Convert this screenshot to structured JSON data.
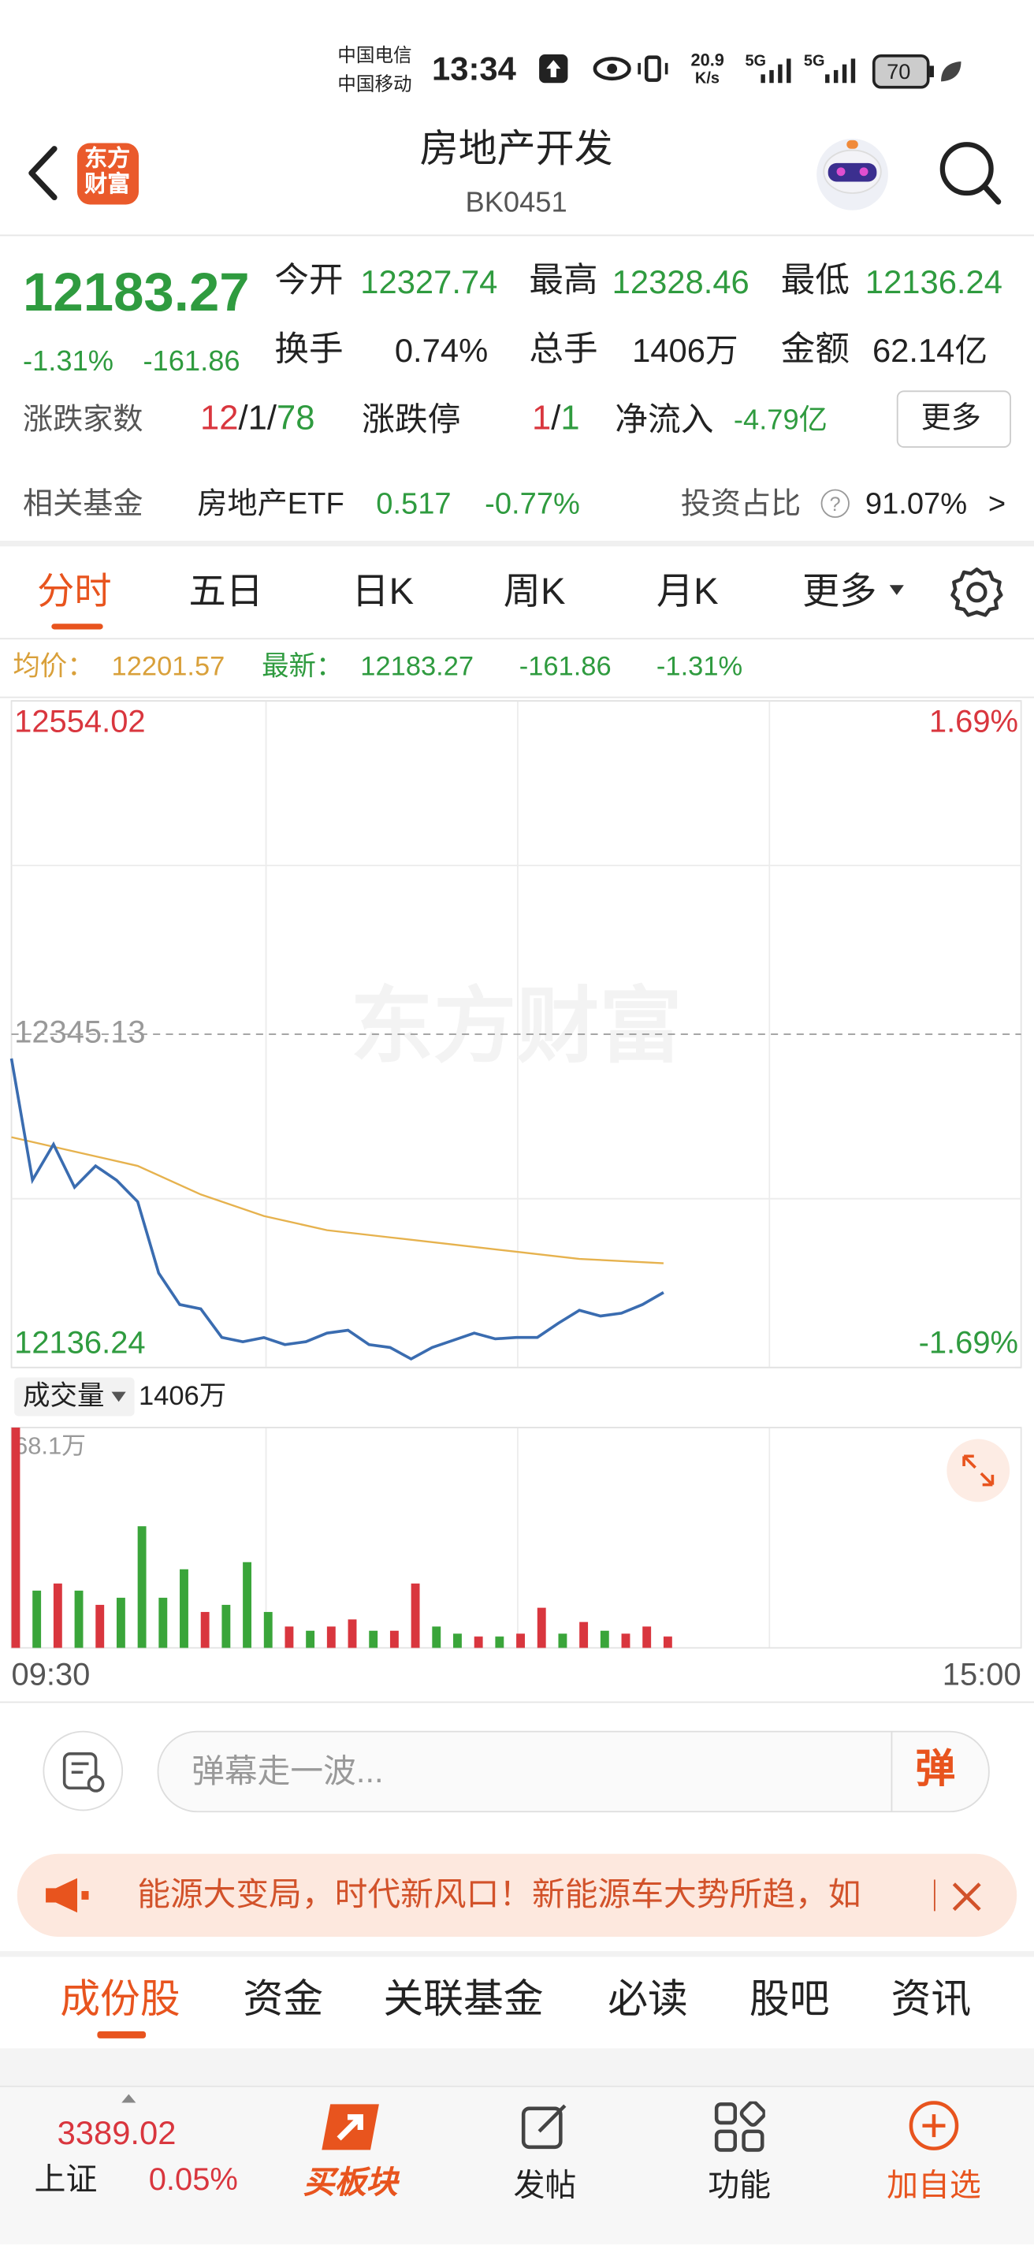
{
  "status_bar": {
    "carrier1": "中国电信",
    "carrier2": "中国移动",
    "time": "13:34",
    "speed": "20.9",
    "speed_unit": "K/s",
    "net1": "5G",
    "net2": "5G",
    "battery": "70"
  },
  "header": {
    "logo_line1": "东方",
    "logo_line2": "财富",
    "title": "房地产开发",
    "code": "BK0451"
  },
  "quote": {
    "price": "12183.27",
    "change_pct": "-1.31%",
    "change": "-161.86",
    "stats": [
      {
        "label": "今开",
        "value": "12327.74"
      },
      {
        "label": "最高",
        "value": "12328.46"
      },
      {
        "label": "最低",
        "value": "12136.24"
      },
      {
        "label": "换手",
        "value": "0.74%"
      },
      {
        "label": "总手",
        "value": "1406万"
      },
      {
        "label": "金额",
        "value": "62.14亿"
      }
    ],
    "breadth_label": "涨跌家数",
    "breadth_up": "12",
    "breadth_flat": "1",
    "breadth_down": "78",
    "separator": "/",
    "limit_label": "涨跌停",
    "limit_up": "1",
    "limit_down": "1",
    "inflow_label": "净流入",
    "inflow": "-4.79亿",
    "more": "更多"
  },
  "fund": {
    "label": "相关基金",
    "name": "房地产ETF",
    "price": "0.517",
    "change": "-0.77%",
    "ratio_label": "投资占比",
    "help": "?",
    "ratio": "91.07%",
    "arrow": ">"
  },
  "chart_tabs": [
    "分时",
    "五日",
    "日K",
    "周K",
    "月K",
    "更多"
  ],
  "info_row": {
    "avg_label": "均价：",
    "avg": "12201.57",
    "last_label": "最新：",
    "last": "12183.27",
    "change": "-161.86",
    "change_pct": "-1.31%"
  },
  "watermark": "东方财富",
  "chart_data": [
    {
      "type": "line",
      "x": [
        "09:30",
        "09:35",
        "09:40",
        "09:45",
        "09:50",
        "09:55",
        "10:00",
        "10:05",
        "10:10",
        "10:15",
        "10:20",
        "10:25",
        "10:30",
        "10:35",
        "10:40",
        "10:45",
        "10:50",
        "10:55",
        "11:00",
        "11:05",
        "11:10",
        "11:15",
        "11:20",
        "11:25",
        "11:30",
        "13:05",
        "13:10",
        "13:15",
        "13:20",
        "13:25",
        "13:30",
        "13:35"
      ],
      "series": [
        {
          "color": "#3a6cb0",
          "values": [
            12329.9,
            12253.7,
            12276.1,
            12249.2,
            12262.6,
            12253.6,
            12240.2,
            12195.4,
            12175.7,
            12173.0,
            12155.1,
            12152.4,
            12155.0,
            12150.6,
            12152.4,
            12157.8,
            12159.6,
            12150.6,
            12148.8,
            12141.6,
            12148.8,
            12153.3,
            12157.8,
            12154.2,
            12155.1,
            12155.1,
            12164.0,
            12172.1,
            12168.5,
            12170.3,
            12175.7,
            12183.27
          ]
        },
        {
          "color": "#e6b24e",
          "x": [
            "09:30",
            "09:45",
            "10:00",
            "10:15",
            "10:30",
            "10:45",
            "11:00",
            "11:15",
            "11:30",
            "13:15",
            "13:35"
          ],
          "values": [
            12280.6,
            12271.6,
            12262.6,
            12244.7,
            12231.2,
            12222.3,
            12217.8,
            12213.3,
            12208.8,
            12204.3,
            12201.57
          ]
        }
      ],
      "ylim": [
        12136.24,
        12554.02
      ],
      "yticks": [
        12136.24,
        12345.13,
        12554.02
      ],
      "y2lim": [
        -1.69,
        1.69
      ],
      "y2ticks": [
        {
          "value": 1.69,
          "label": "1.69%"
        },
        {
          "value": -1.69,
          "label": "-1.69%"
        }
      ]
    },
    {
      "type": "bar",
      "title": "成交量",
      "subtitle": "1406万",
      "x": [
        "09:30",
        "09:35",
        "09:40",
        "09:45",
        "09:50",
        "09:55",
        "10:00",
        "10:05",
        "10:10",
        "10:15",
        "10:20",
        "10:25",
        "10:30",
        "10:35",
        "10:40",
        "10:45",
        "10:50",
        "10:55",
        "11:00",
        "11:05",
        "11:10",
        "11:15",
        "11:20",
        "11:25",
        "11:30",
        "13:05",
        "13:10",
        "13:15",
        "13:20",
        "13:25",
        "13:30",
        "13:35"
      ],
      "values": [
        68.1,
        17.7,
        19.9,
        17.7,
        13.3,
        15.5,
        37.6,
        15.5,
        24.3,
        11.1,
        13.3,
        26.5,
        11.1,
        6.6,
        5.3,
        6.6,
        8.8,
        5.3,
        5.3,
        19.9,
        6.6,
        4.4,
        3.5,
        3.5,
        4.4,
        12.4,
        4.4,
        8.0,
        5.3,
        4.4,
        6.6,
        3.5
      ],
      "bar_colors": [
        "#d9363e",
        "#3aa53a",
        "#d9363e",
        "#3aa53a",
        "#d9363e",
        "#3aa53a",
        "#3aa53a",
        "#3aa53a",
        "#3aa53a",
        "#d9363e",
        "#3aa53a",
        "#3aa53a",
        "#3aa53a",
        "#d9363e",
        "#3aa53a",
        "#d9363e",
        "#d9363e",
        "#3aa53a",
        "#d9363e",
        "#d9363e",
        "#3aa53a",
        "#3aa53a",
        "#d9363e",
        "#3aa53a",
        "#d9363e",
        "#d9363e",
        "#3aa53a",
        "#d9363e",
        "#3aa53a",
        "#d9363e",
        "#d9363e",
        "#d9363e"
      ],
      "ylim": [
        0,
        68.1
      ],
      "yticks": [
        {
          "value": 68.1,
          "label": "68.1万"
        }
      ],
      "xticks": [
        "09:30",
        "15:00"
      ]
    }
  ],
  "danmaku": {
    "placeholder": "弹幕走一波...",
    "button": "弹"
  },
  "banner": {
    "text": "能源大变局，时代新风口！新能源车大势所趋，如"
  },
  "section_tabs": [
    "成份股",
    "资金",
    "关联基金",
    "必读",
    "股吧",
    "资讯"
  ],
  "bottom_nav": {
    "index_value": "3389.02",
    "index_name": "上证",
    "index_change": "0.05%",
    "items": [
      "买板块",
      "发帖",
      "功能",
      "加自选"
    ]
  }
}
